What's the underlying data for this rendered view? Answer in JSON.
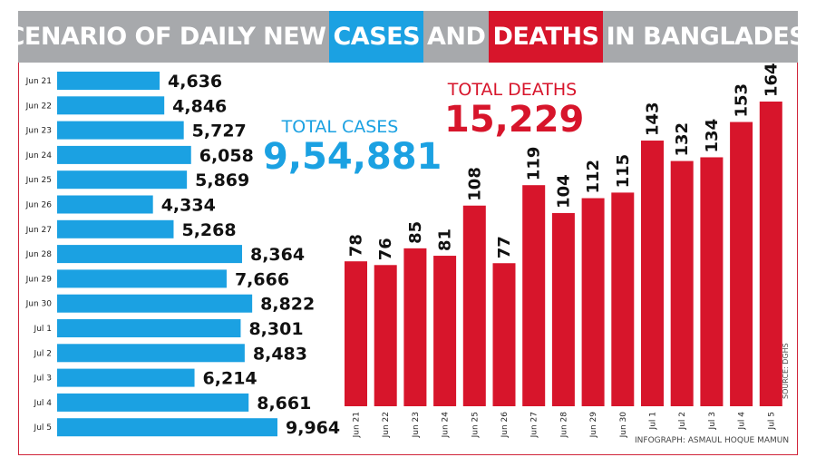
{
  "title": {
    "part1": "SCENARIO OF DAILY NEW ",
    "part2": "CASES",
    "part3": " AND ",
    "part4": "DEATHS",
    "part5": " IN BANGLADESH"
  },
  "totals": {
    "cases_label": "TOTAL CASES",
    "cases_value": "9,54,881",
    "deaths_label": "TOTAL DEATHS",
    "deaths_value": "15,229"
  },
  "source": "SOURCE: DGHS",
  "credit": "INFOGRAPH: ASMAUL HOQUE MAMUN",
  "colors": {
    "cases": "#1ba1e2",
    "deaths": "#d7152b",
    "title_bg": "#a7a9ac"
  },
  "chart_data": [
    {
      "type": "bar",
      "orientation": "horizontal",
      "categories": [
        "Jun 21",
        "Jun 22",
        "Jun 23",
        "Jun 24",
        "Jun 25",
        "Jun 26",
        "Jun 27",
        "Jun 28",
        "Jun 29",
        "Jun 30",
        "Jul 1",
        "Jul 2",
        "Jul 3",
        "Jul 4",
        "Jul 5"
      ],
      "values": [
        4636,
        4846,
        5727,
        6058,
        5869,
        4334,
        5268,
        8364,
        7666,
        8822,
        8301,
        8483,
        6214,
        8661,
        9964
      ],
      "labels": [
        "4,636",
        "4,846",
        "5,727",
        "6,058",
        "5,869",
        "4,334",
        "5,268",
        "8,364",
        "7,666",
        "8,822",
        "8,301",
        "8,483",
        "6,214",
        "8,661",
        "9,964"
      ]
    },
    {
      "type": "bar",
      "orientation": "vertical",
      "categories": [
        "Jun 21",
        "Jun 22",
        "Jun 23",
        "Jun 24",
        "Jun 25",
        "Jun 26",
        "Jun 27",
        "Jun 28",
        "Jun 29",
        "Jun 30",
        "Jul 1",
        "Jul 2",
        "Jul 3",
        "Jul 4",
        "Jul 5"
      ],
      "values": [
        78,
        76,
        85,
        81,
        108,
        77,
        119,
        104,
        112,
        115,
        143,
        132,
        134,
        153,
        164
      ],
      "labels": [
        "78",
        "76",
        "85",
        "81",
        "108",
        "77",
        "119",
        "104",
        "112",
        "115",
        "143",
        "132",
        "134",
        "153",
        "164"
      ]
    }
  ]
}
